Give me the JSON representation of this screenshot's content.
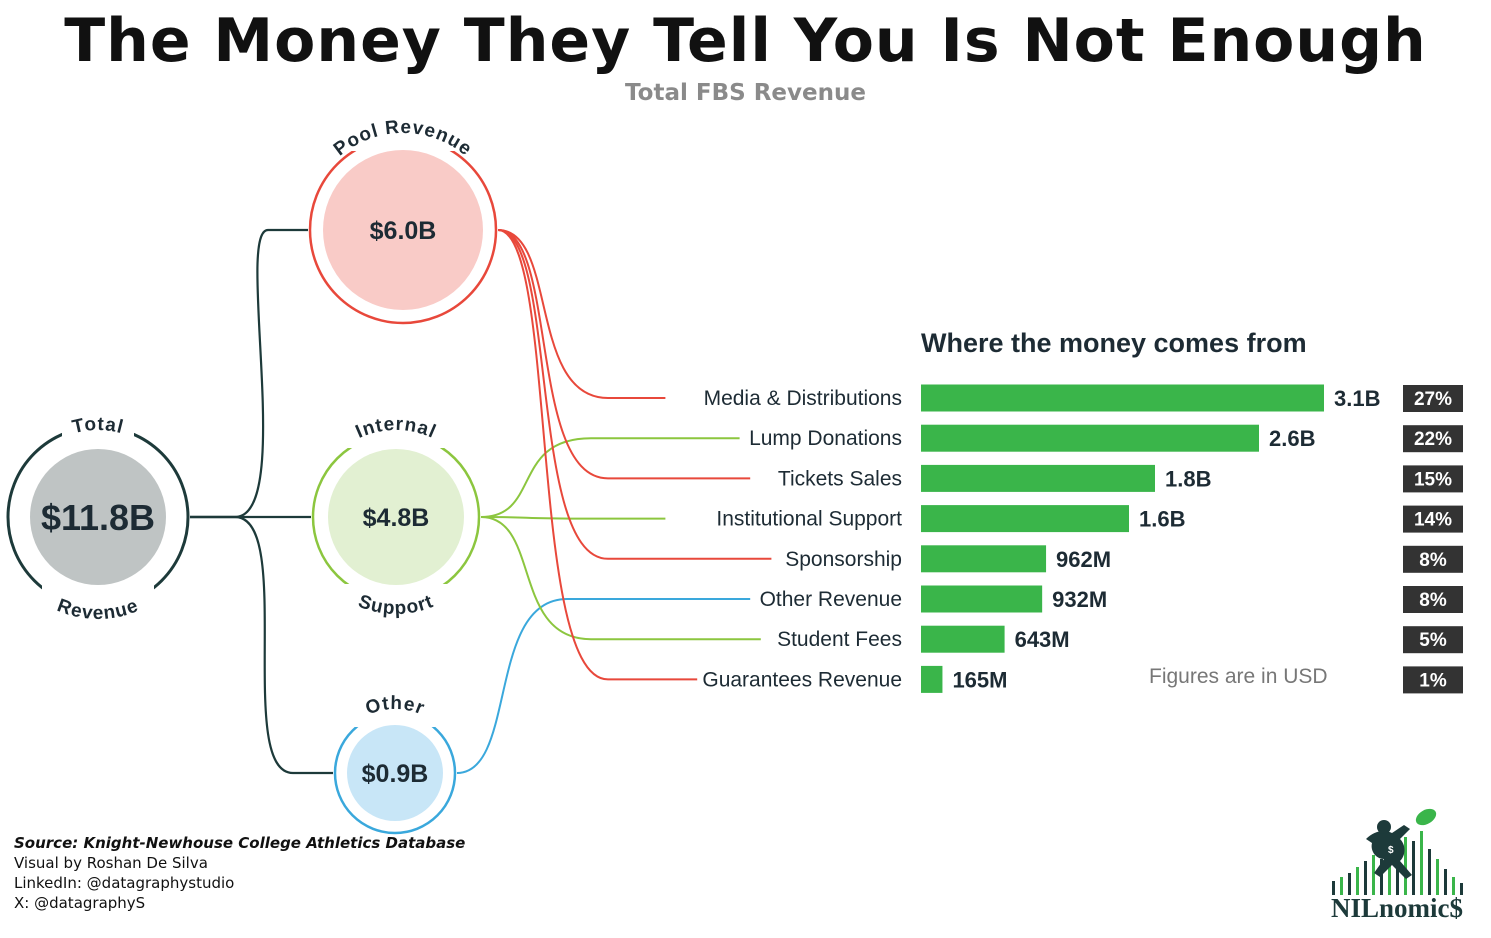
{
  "title": "The Money They Tell You Is Not Enough",
  "subtitle": "Total FBS Revenue",
  "chart_heading": "Where the money comes from",
  "footnote": "Figures are in USD",
  "credits": {
    "source": "Source: Knight-Newhouse College Athletics Database",
    "visual": "Visual by Roshan De Silva",
    "linkedin": "LinkedIn: @datagraphystudio",
    "x": "X: @datagraphyS"
  },
  "logo_text": "NILnomic$",
  "colors": {
    "pool": "#e8483b",
    "internal": "#8cc63f",
    "other": "#3aa8dc",
    "total": "#1d3a3a",
    "bar": "#3ab54a",
    "pct_bg": "#333333"
  },
  "chart_data": [
    {
      "type": "tree",
      "root": {
        "label_top": "Total",
        "label_bottom": "Revenue",
        "value": "$11.8B"
      },
      "groups": [
        {
          "id": "pool",
          "label_top": "Pool Revenue",
          "label_bottom": "",
          "value": "$6.0B",
          "fill": "#f9cbc7",
          "stroke": "#e8483b"
        },
        {
          "id": "internal",
          "label_top": "Internal",
          "label_bottom": "Support",
          "value": "$4.8B",
          "fill": "#e2f0d2",
          "stroke": "#8cc63f"
        },
        {
          "id": "other",
          "label_top": "Other",
          "label_bottom": "",
          "value": "$0.9B",
          "fill": "#c8e6f7",
          "stroke": "#3aa8dc"
        }
      ]
    },
    {
      "type": "bar",
      "orientation": "horizontal",
      "title": "Where the money comes from",
      "categories": [
        "Media & Distributions",
        "Lump Donations",
        "Tickets Sales",
        "Institutional Support",
        "Sponsorship",
        "Other Revenue",
        "Student Fees",
        "Guarantees Revenue"
      ],
      "values": [
        3.1,
        2.6,
        1.8,
        1.6,
        0.962,
        0.932,
        0.643,
        0.165
      ],
      "value_labels": [
        "3.1B",
        "2.6B",
        "1.8B",
        "1.6B",
        "962M",
        "932M",
        "643M",
        "165M"
      ],
      "percents": [
        "27%",
        "22%",
        "15%",
        "14%",
        "8%",
        "8%",
        "5%",
        "1%"
      ],
      "group": [
        "pool",
        "internal",
        "pool",
        "internal",
        "pool",
        "other",
        "internal",
        "pool"
      ],
      "unit": "USD (billions)"
    }
  ]
}
